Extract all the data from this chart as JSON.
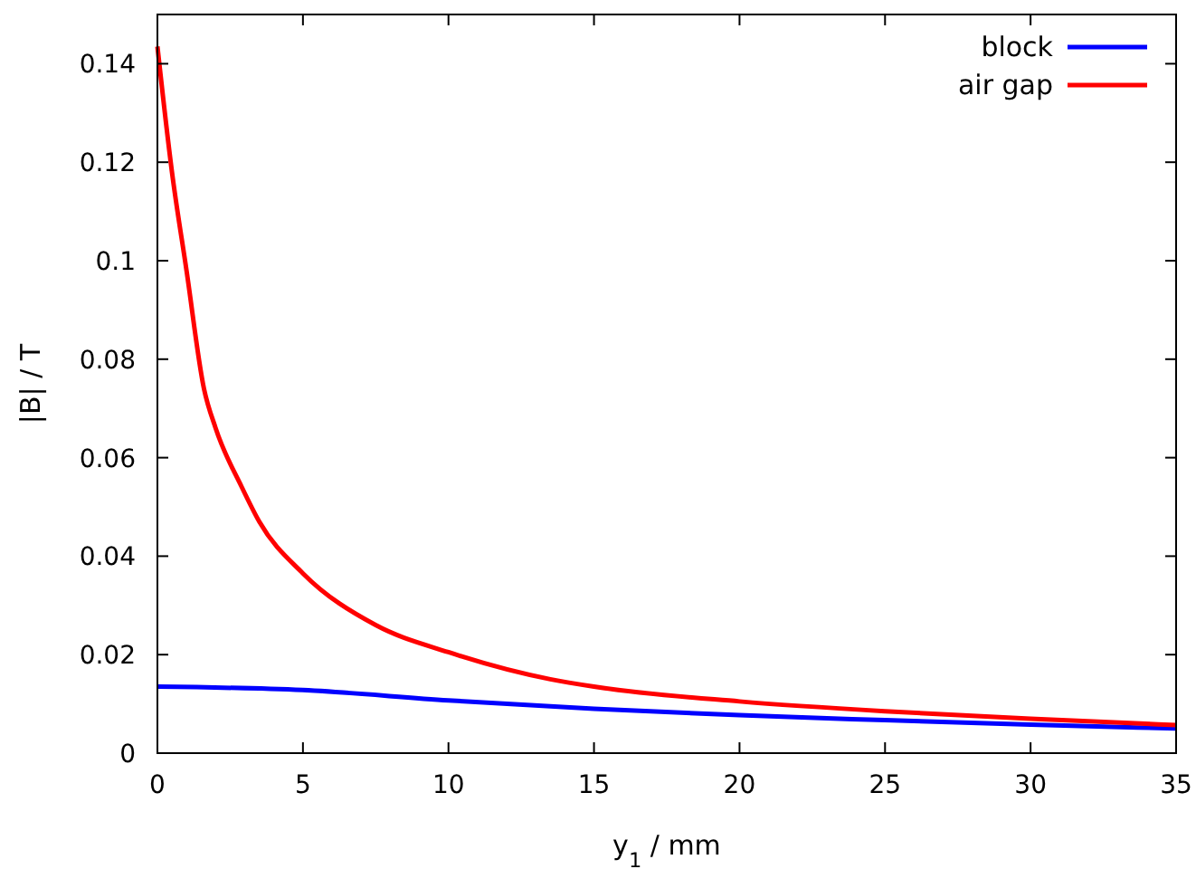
{
  "chart_data": {
    "type": "line",
    "xlabel": "y$_{1}$ / mm",
    "ylabel": "|B| / T",
    "xlim": [
      0,
      35
    ],
    "ylim": [
      0,
      0.15
    ],
    "xticks": [
      0,
      5,
      10,
      15,
      20,
      25,
      30,
      35
    ],
    "yticks": [
      0,
      0.02,
      0.04,
      0.06,
      0.08,
      0.1,
      0.12,
      0.14
    ],
    "legend": "top right",
    "grid": false,
    "x": [
      0,
      0.5,
      1,
      1.6,
      2,
      2.9,
      3.5,
      5,
      7.5,
      10,
      13.5,
      15,
      20,
      25,
      30,
      35
    ],
    "series": [
      {
        "name": "block",
        "color": "#0000ff",
        "x": [
          0,
          5,
          10,
          15,
          20,
          25,
          30,
          35
        ],
        "values": [
          0.0135,
          0.0128,
          0.0107,
          0.009,
          0.0077,
          0.0067,
          0.0058,
          0.005
        ]
      },
      {
        "name": "air gap",
        "color": "#ff0000",
        "values": [
          0.1435,
          0.118,
          0.098,
          0.074,
          0.066,
          0.054,
          0.047,
          0.0365,
          0.026,
          0.0205,
          0.015,
          0.0135,
          0.0105,
          0.0085,
          0.007,
          0.0057
        ]
      }
    ]
  }
}
